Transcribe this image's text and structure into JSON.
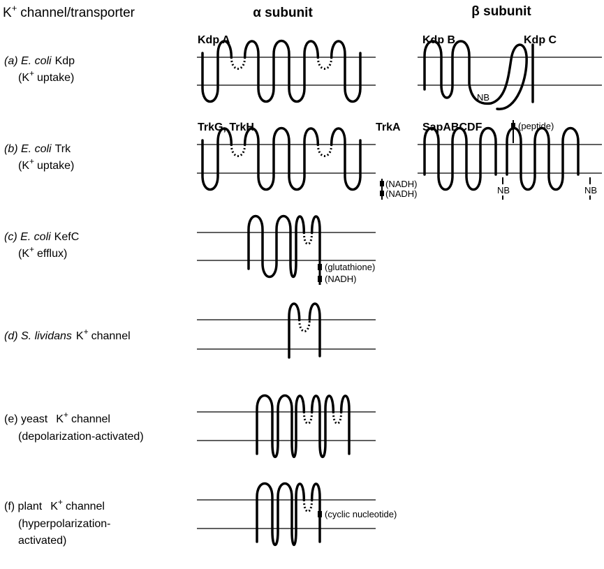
{
  "header": {
    "col1": [
      "K",
      "+",
      "channel/transporter"
    ],
    "alpha": "α subunit",
    "beta": "β subunit"
  },
  "rows": {
    "a": {
      "line1": [
        "(a) E. coli",
        "Kdp"
      ],
      "line2": [
        "(K",
        "+",
        "uptake)"
      ]
    },
    "b": {
      "line1": [
        "(b) E. coli",
        "Trk"
      ],
      "line2": [
        "(K",
        "+",
        "uptake)"
      ]
    },
    "c": {
      "line1": [
        "(c) E. coli",
        "KefC"
      ],
      "line2": [
        "(K",
        "+",
        "efflux)"
      ]
    },
    "d": {
      "line1": [
        "(d) S. lividans",
        "K",
        "+",
        "channel"
      ]
    },
    "e": {
      "line1": [
        "(e) yeast",
        "K",
        "+",
        "channel"
      ],
      "line2": "(depolarization-activated)"
    },
    "f": {
      "line1": [
        "(f) plant",
        "K",
        "+",
        "channel"
      ],
      "line2": "(hyperpolarization-",
      "line3": "activated)"
    }
  },
  "labels": {
    "kdp_a": "Kdp A",
    "kdp_b": "Kdp B",
    "kdp_c": "Kdp C",
    "trk_gh": "TrkG, TrkH",
    "trk_a": "TrkA",
    "sap": "SapABCDF"
  },
  "annotations": {
    "nb_kdp": "NB",
    "peptide": "(peptide)",
    "nadh_1": "(NADH)",
    "nadh_2": "(NADH)",
    "nb_sap_1": "NB",
    "nb_sap_2": "NB",
    "glutathione": "(glutathione)",
    "nadh_kefc": "(NADH)",
    "cyclic": "(cyclic nucleotide)"
  }
}
